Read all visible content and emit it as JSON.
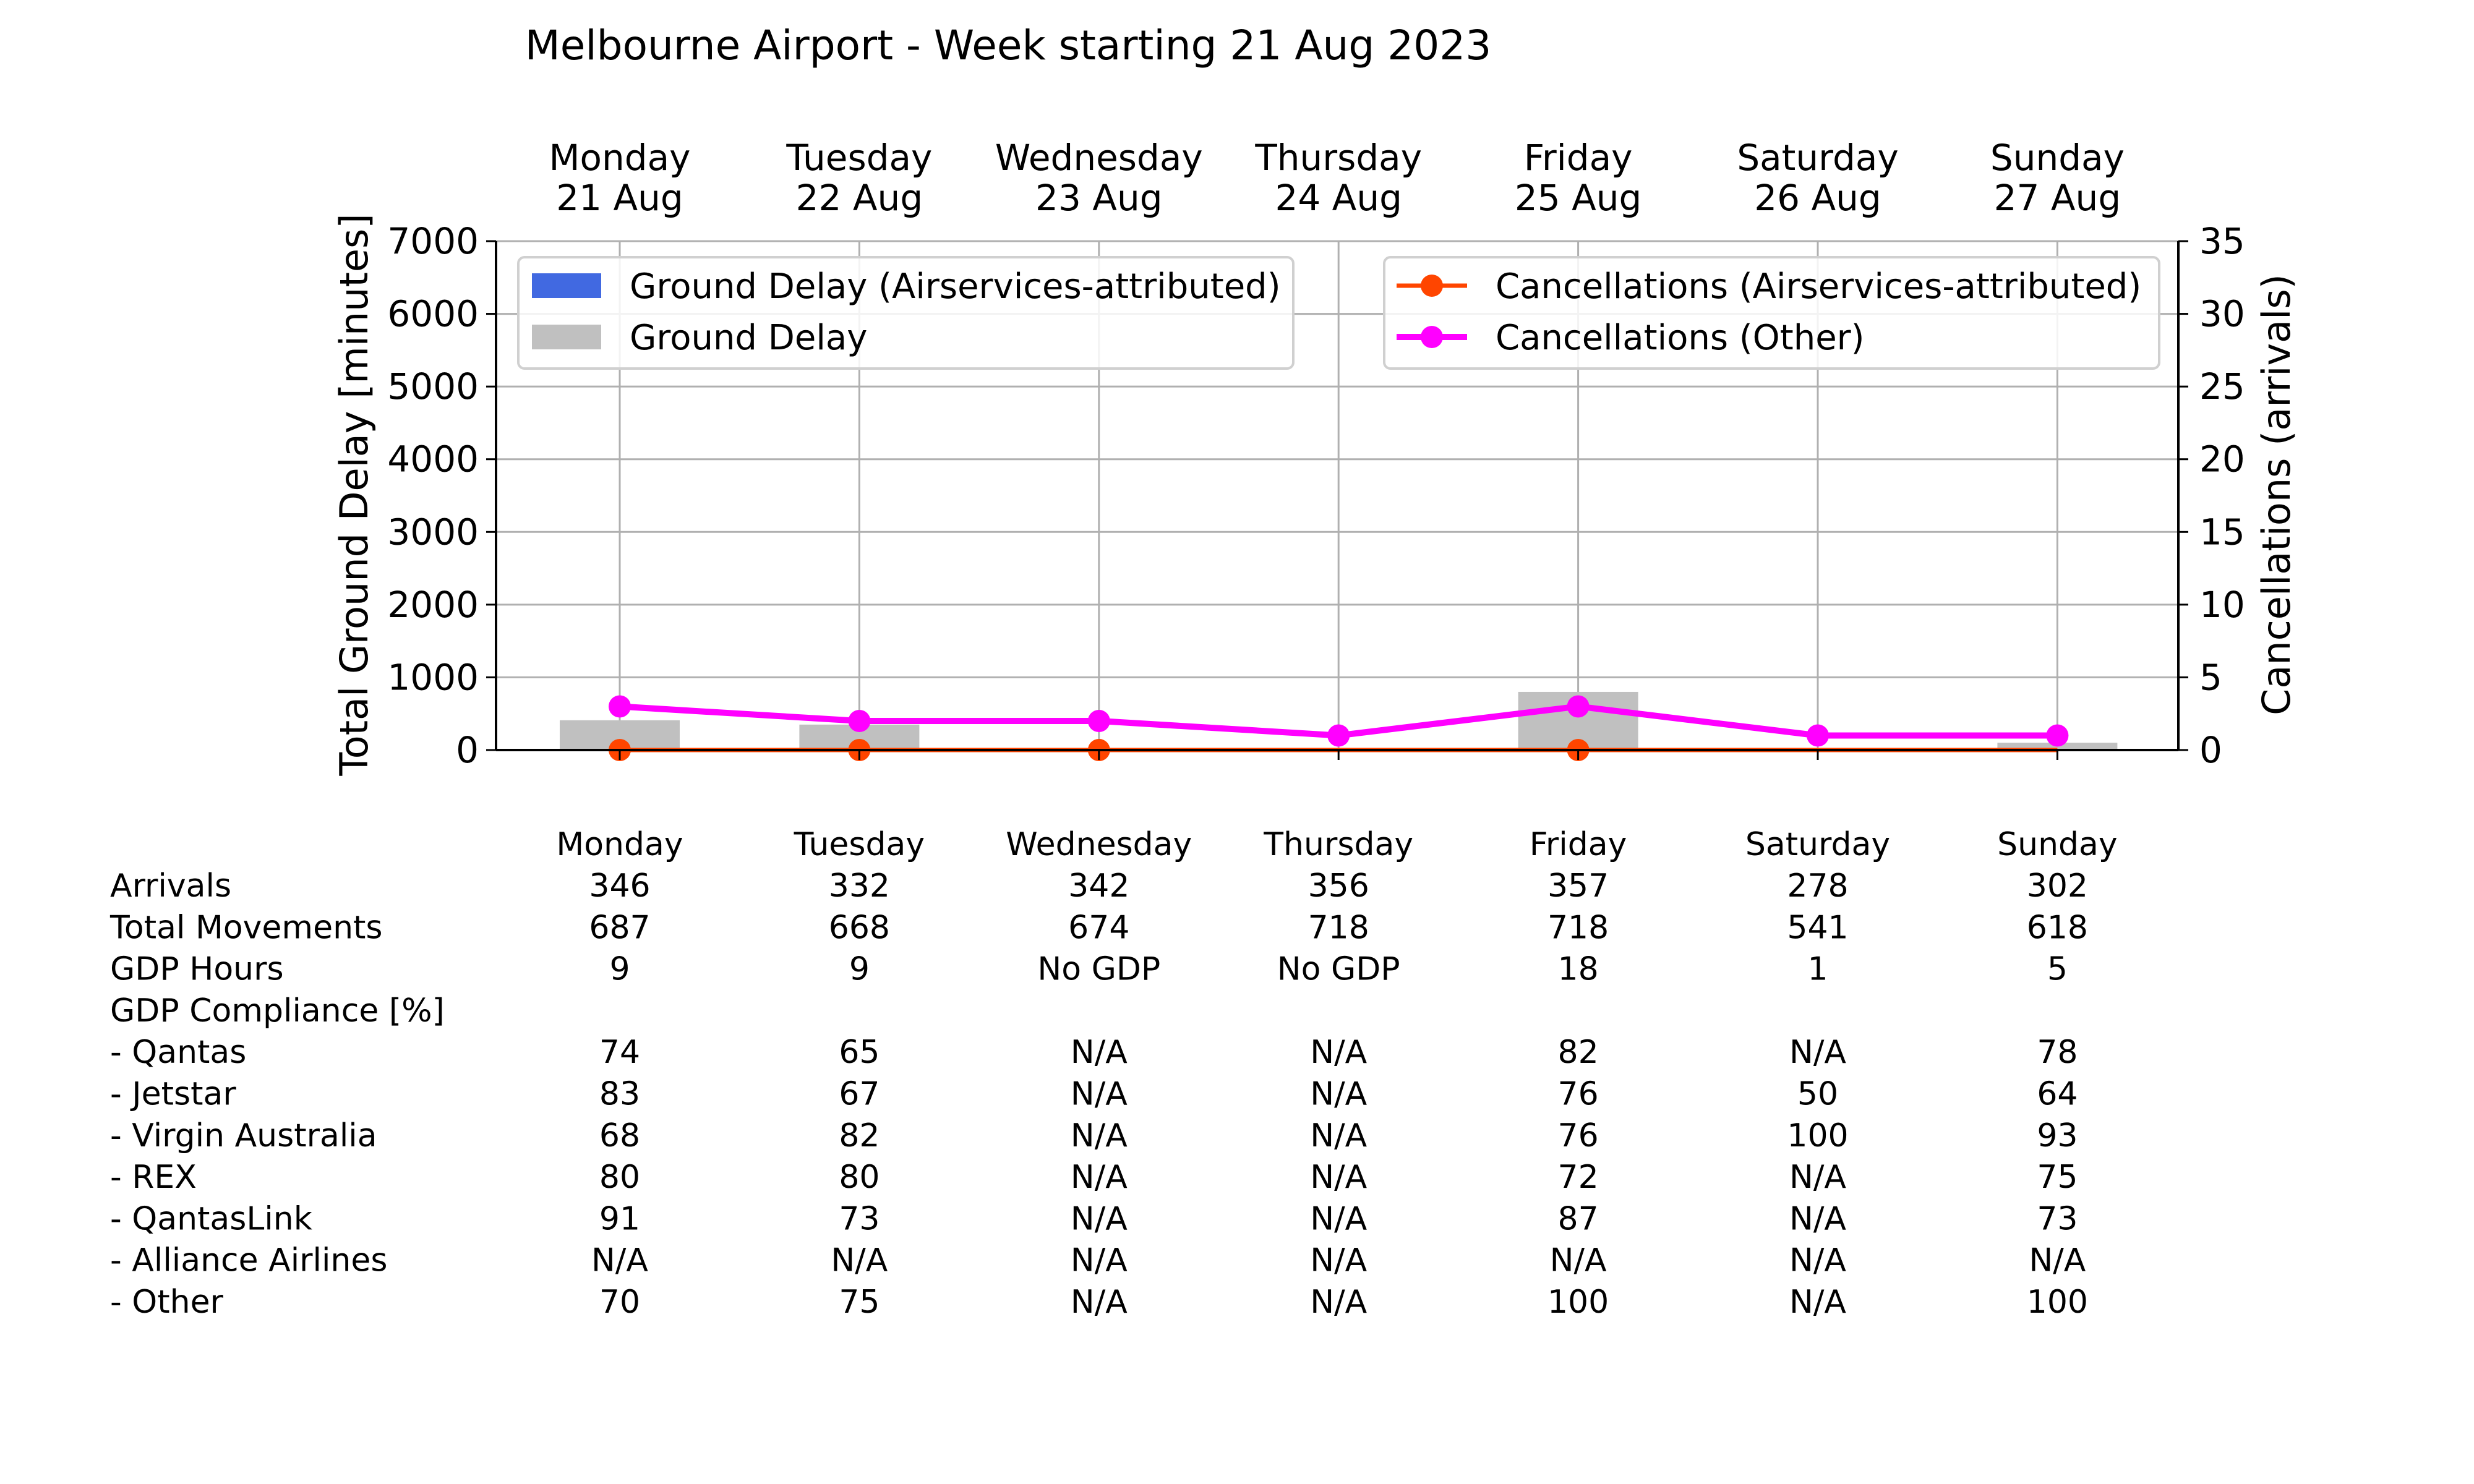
{
  "chart_data": {
    "type": "bar+line",
    "title": "Melbourne Airport - Week starting 21 Aug 2023",
    "top_ticks": [
      {
        "line1": "Monday",
        "line2": "21 Aug"
      },
      {
        "line1": "Tuesday",
        "line2": "22 Aug"
      },
      {
        "line1": "Wednesday",
        "line2": "23 Aug"
      },
      {
        "line1": "Thursday",
        "line2": "24 Aug"
      },
      {
        "line1": "Friday",
        "line2": "25 Aug"
      },
      {
        "line1": "Saturday",
        "line2": "26 Aug"
      },
      {
        "line1": "Sunday",
        "line2": "27 Aug"
      }
    ],
    "ylabel_left": "Total Ground Delay [minutes]",
    "ylabel_right": "Cancellations (arrivals)",
    "ylim_left": [
      0,
      7000
    ],
    "ylim_right": [
      0,
      35
    ],
    "yticks_left": [
      "0",
      "1000",
      "2000",
      "3000",
      "4000",
      "5000",
      "6000",
      "7000"
    ],
    "yticks_right": [
      "0",
      "5",
      "10",
      "15",
      "20",
      "25",
      "30",
      "35"
    ],
    "grid": true,
    "bar_series": [
      {
        "name": "Ground Delay (Airservices-attributed)",
        "color": "#4169e1",
        "values": [
          0,
          0,
          0,
          0,
          0,
          0,
          0
        ]
      },
      {
        "name": "Ground Delay",
        "color": "#c0c0c0",
        "values": [
          410,
          350,
          0,
          0,
          800,
          0,
          100
        ]
      }
    ],
    "line_series": [
      {
        "name": "Cancellations (Airservices-attributed)",
        "color": "#ff4500",
        "values": [
          0,
          0,
          0,
          0,
          0,
          0,
          0
        ]
      },
      {
        "name": "Cancellations (Other)",
        "color": "#ff00ff",
        "values": [
          3,
          2,
          2,
          1,
          3,
          1,
          1
        ]
      }
    ],
    "legend_left_placement": "upper-left",
    "legend_right_placement": "upper-right"
  },
  "table": {
    "columns": [
      "Monday",
      "Tuesday",
      "Wednesday",
      "Thursday",
      "Friday",
      "Saturday",
      "Sunday"
    ],
    "rows": [
      {
        "label": "Arrivals",
        "values": [
          "346",
          "332",
          "342",
          "356",
          "357",
          "278",
          "302"
        ]
      },
      {
        "label": "Total Movements",
        "values": [
          "687",
          "668",
          "674",
          "718",
          "718",
          "541",
          "618"
        ]
      },
      {
        "label": "GDP Hours",
        "values": [
          "9",
          "9",
          "No GDP",
          "No GDP",
          "18",
          "1",
          "5"
        ]
      },
      {
        "label": "GDP Compliance [%]",
        "values": [
          "",
          "",
          "",
          "",
          "",
          "",
          ""
        ]
      },
      {
        "label": "  - Qantas",
        "values": [
          "74",
          "65",
          "N/A",
          "N/A",
          "82",
          "N/A",
          "78"
        ]
      },
      {
        "label": "  - Jetstar",
        "values": [
          "83",
          "67",
          "N/A",
          "N/A",
          "76",
          "50",
          "64"
        ]
      },
      {
        "label": "  - Virgin Australia",
        "values": [
          "68",
          "82",
          "N/A",
          "N/A",
          "76",
          "100",
          "93"
        ]
      },
      {
        "label": "  - REX",
        "values": [
          "80",
          "80",
          "N/A",
          "N/A",
          "72",
          "N/A",
          "75"
        ]
      },
      {
        "label": "  - QantasLink",
        "values": [
          "91",
          "73",
          "N/A",
          "N/A",
          "87",
          "N/A",
          "73"
        ]
      },
      {
        "label": "  - Alliance Airlines",
        "values": [
          "N/A",
          "N/A",
          "N/A",
          "N/A",
          "N/A",
          "N/A",
          "N/A"
        ]
      },
      {
        "label": "  - Other",
        "values": [
          "70",
          "75",
          "N/A",
          "N/A",
          "100",
          "N/A",
          "100"
        ]
      }
    ]
  }
}
